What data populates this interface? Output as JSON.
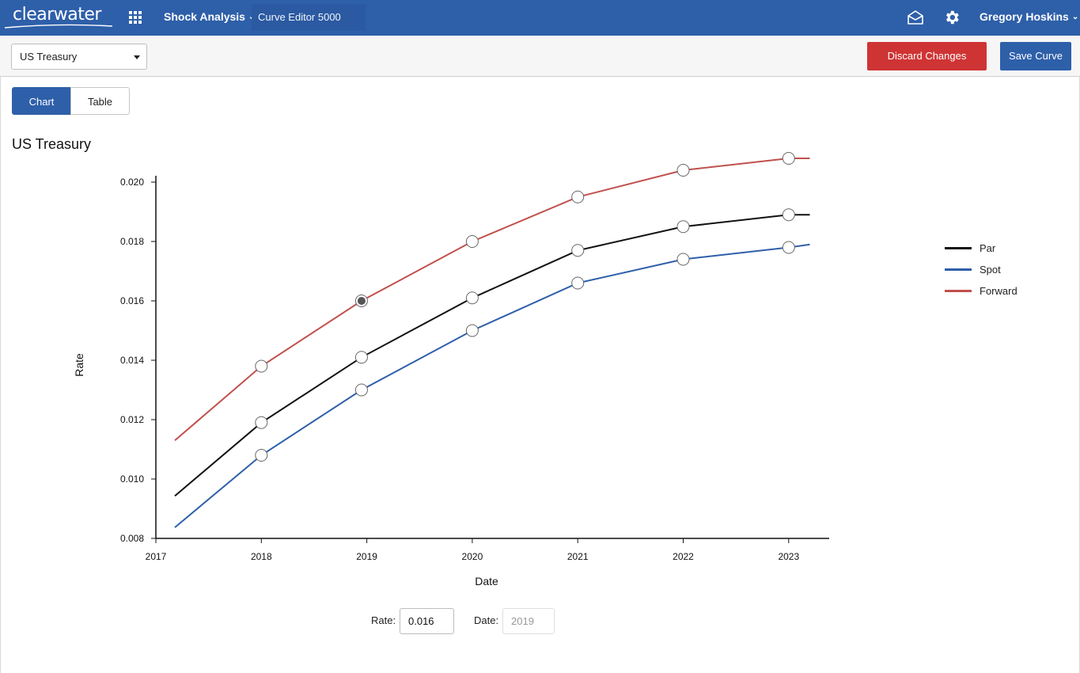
{
  "nav": {
    "logo_text": "clearwater",
    "product_label": "Shock Analysis",
    "app_name": "Curve Editor 5000",
    "user_name": "Gregory Hoskins"
  },
  "toolbar": {
    "curve_selected": "US Treasury",
    "discard_label": "Discard Changes",
    "save_label": "Save Curve"
  },
  "tabs": {
    "chart_label": "Chart",
    "table_label": "Table",
    "active": "Chart"
  },
  "colors": {
    "brand_blue": "#2e5fa9",
    "discard_red": "#cf3434",
    "par": "#111111",
    "spot": "#2e5fa9",
    "forward": "#c0504d"
  },
  "chart_data": {
    "type": "line",
    "title": "US Treasury",
    "xlabel": "Date",
    "ylabel": "Rate",
    "xlim": [
      2017.0,
      2023.2
    ],
    "ylim": [
      0.008,
      0.0205
    ],
    "x_ticks": [
      "2017",
      "2018",
      "2019",
      "2020",
      "2021",
      "2022",
      "2023"
    ],
    "y_ticks": [
      "0.020",
      "0.018",
      "0.016",
      "0.014",
      "0.012",
      "0.010",
      "0.008"
    ],
    "x": [
      2017.18,
      2018.0,
      2018.95,
      2020.0,
      2021.0,
      2022.0,
      2023.0,
      2023.2
    ],
    "series": [
      {
        "name": "Par",
        "color": "#111111",
        "values": [
          0.00943,
          0.0119,
          0.0141,
          0.0161,
          0.0177,
          0.0185,
          0.0189,
          0.0189
        ]
      },
      {
        "name": "Spot",
        "color": "#2e5fa9",
        "values": [
          0.00837,
          0.0108,
          0.013,
          0.015,
          0.0166,
          0.0174,
          0.0178,
          0.0179
        ]
      },
      {
        "name": "Forward",
        "color": "#c0504d",
        "values": [
          0.0113,
          0.0138,
          0.016,
          0.018,
          0.0195,
          0.0204,
          0.0208,
          0.0208
        ]
      }
    ],
    "marker_points": [
      1,
      2,
      3,
      4,
      5,
      6
    ],
    "selected_point": {
      "series": "Forward",
      "date": "2019",
      "rate": 0.016
    },
    "legend_position": "right",
    "grid": false
  },
  "editor": {
    "rate_label": "Rate:",
    "rate_value": "0.016",
    "date_label": "Date:",
    "date_value": "2019"
  }
}
